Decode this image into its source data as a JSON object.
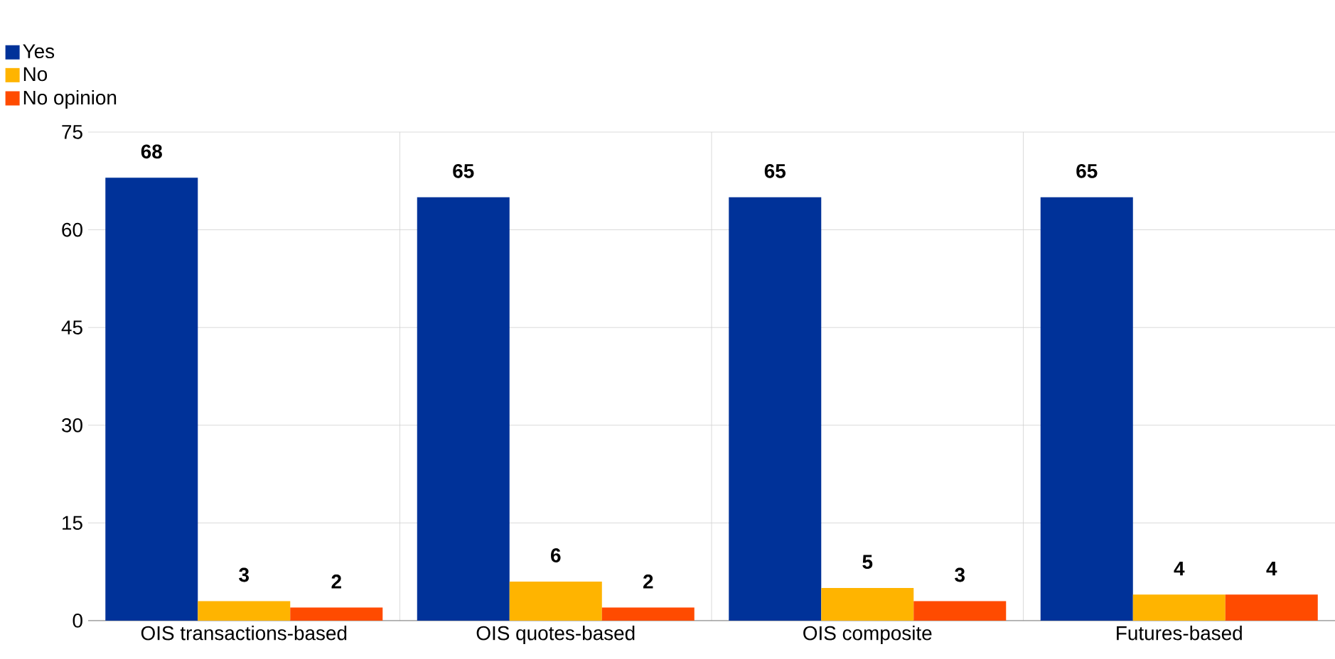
{
  "chart_data": {
    "type": "bar",
    "categories": [
      "OIS transactions-based",
      "OIS quotes-based",
      "OIS composite",
      "Futures-based"
    ],
    "series": [
      {
        "name": "Yes",
        "color": "#003299",
        "values": [
          68,
          65,
          65,
          65
        ]
      },
      {
        "name": "No",
        "color": "#ffb400",
        "values": [
          3,
          6,
          5,
          4
        ]
      },
      {
        "name": "No opinion",
        "color": "#ff4b00",
        "values": [
          2,
          2,
          3,
          4
        ]
      }
    ],
    "ylim": [
      0,
      75
    ],
    "yticks": [
      0,
      15,
      30,
      45,
      60,
      75
    ],
    "grid": true,
    "legend": "top left",
    "data_labels": true
  }
}
